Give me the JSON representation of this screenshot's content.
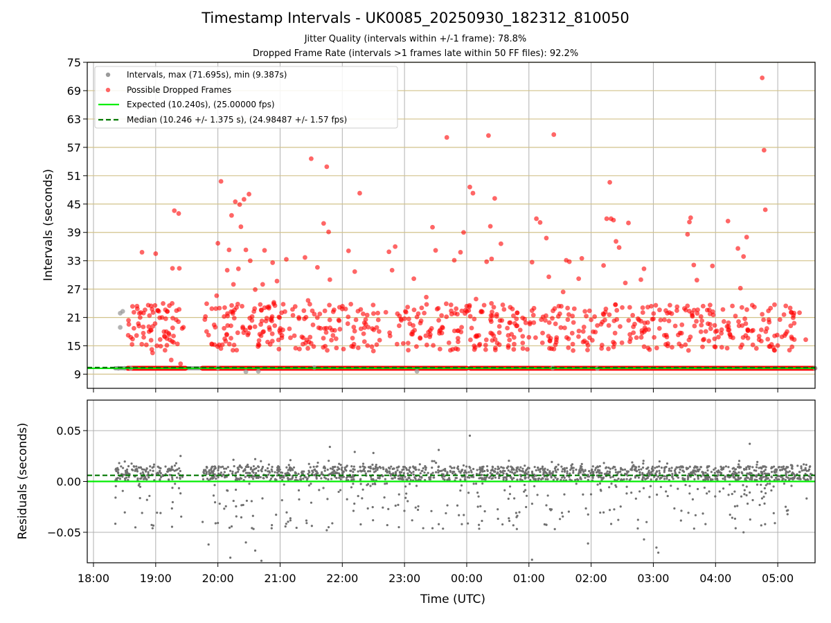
{
  "colors": {
    "intervals": "#9a9a9a",
    "dropped": "#ff0000",
    "expected": "#00ee00",
    "median": "#007700",
    "residuals": "#707070",
    "hgrid_top": "#d2c28a",
    "grid": "#b0b0b0"
  },
  "chart_data": [
    {
      "type": "scatter",
      "title": "Timestamp Intervals - UK0085_20250930_182312_810050",
      "subtitle_1": "Jitter Quality (intervals within +/-1 frame): 78.8%",
      "subtitle_2": "Dropped Frame Rate (intervals >1 frames late within 50 FF files): 92.2%",
      "ylabel": "Intervals (seconds)",
      "xlabel": "",
      "x_unit": "hours since 18:00 UTC",
      "xlim": [
        -0.1,
        11.6
      ],
      "ylim": [
        6,
        75
      ],
      "yticks": [
        9,
        15,
        21,
        27,
        33,
        39,
        45,
        51,
        57,
        63,
        69,
        75
      ],
      "expected_interval": 10.24,
      "median_interval": 10.246,
      "legend": [
        "Intervals, max (71.695s), min (9.387s)",
        "Possible Dropped Frames",
        "Expected (10.240s), (25.00000 fps)",
        "Median (10.246 +/- 1.375 s), (24.98487 +/- 1.57 fps)"
      ],
      "intervals_series": [
        [
          0.43,
          21.9
        ],
        [
          0.47,
          22.3
        ],
        [
          0.43,
          18.9
        ],
        [
          0.4,
          10.24
        ],
        [
          0.5,
          10.25
        ],
        [
          0.6,
          10.24
        ],
        [
          2.0,
          10.3
        ],
        [
          2.45,
          9.5
        ],
        [
          2.65,
          9.6
        ],
        [
          3.55,
          10.4
        ],
        [
          5.2,
          9.6
        ],
        [
          7.38,
          10.3
        ],
        [
          8.1,
          10.2
        ],
        [
          11.6,
          10.24
        ]
      ],
      "dropped_series": [
        [
          0.6,
          16.8
        ],
        [
          0.65,
          22.1
        ],
        [
          0.62,
          15.3
        ],
        [
          0.7,
          23.4
        ],
        [
          0.75,
          21.0
        ],
        [
          0.78,
          34.8
        ],
        [
          0.8,
          19.0
        ],
        [
          0.85,
          15.2
        ],
        [
          0.88,
          23.6
        ],
        [
          0.9,
          21.4
        ],
        [
          0.95,
          13.5
        ],
        [
          0.99,
          19.7
        ],
        [
          1.0,
          34.5
        ],
        [
          1.02,
          15.0
        ],
        [
          1.05,
          22.3
        ],
        [
          1.22,
          23.5
        ],
        [
          1.25,
          12.0
        ],
        [
          1.27,
          31.4
        ],
        [
          1.3,
          43.6
        ],
        [
          1.33,
          20.5
        ],
        [
          1.35,
          15.4
        ],
        [
          1.37,
          43.0
        ],
        [
          1.38,
          31.4
        ],
        [
          1.4,
          11.2
        ],
        [
          1.8,
          21.2
        ],
        [
          1.9,
          15.4
        ],
        [
          1.98,
          25.6
        ],
        [
          2.0,
          36.7
        ],
        [
          2.02,
          15.2
        ],
        [
          2.05,
          49.8
        ],
        [
          2.1,
          21.2
        ],
        [
          2.15,
          31.0
        ],
        [
          2.18,
          35.3
        ],
        [
          2.22,
          42.6
        ],
        [
          2.25,
          28.0
        ],
        [
          2.28,
          45.5
        ],
        [
          2.3,
          23.1
        ],
        [
          2.33,
          31.3
        ],
        [
          2.35,
          44.9
        ],
        [
          2.37,
          40.2
        ],
        [
          2.4,
          19.0
        ],
        [
          2.42,
          46.0
        ],
        [
          2.45,
          35.3
        ],
        [
          2.48,
          17.3
        ],
        [
          2.5,
          47.1
        ],
        [
          2.52,
          33.0
        ],
        [
          2.55,
          21.2
        ],
        [
          2.6,
          26.9
        ],
        [
          2.65,
          15.3
        ],
        [
          2.7,
          22.5
        ],
        [
          2.72,
          28.0
        ],
        [
          2.75,
          35.2
        ],
        [
          2.8,
          15.8
        ],
        [
          2.85,
          20.5
        ],
        [
          2.88,
          32.6
        ],
        [
          2.9,
          24.2
        ],
        [
          2.95,
          28.7
        ],
        [
          3.0,
          17.8
        ],
        [
          3.05,
          23.8
        ],
        [
          3.1,
          33.3
        ],
        [
          3.15,
          18.6
        ],
        [
          3.2,
          22.7
        ],
        [
          3.25,
          14.5
        ],
        [
          3.35,
          16.9
        ],
        [
          3.4,
          33.7
        ],
        [
          3.45,
          24.6
        ],
        [
          3.5,
          54.6
        ],
        [
          3.55,
          21.7
        ],
        [
          3.6,
          31.6
        ],
        [
          3.65,
          18.7
        ],
        [
          3.7,
          40.9
        ],
        [
          3.72,
          22.4
        ],
        [
          3.75,
          52.9
        ],
        [
          3.78,
          39.1
        ],
        [
          3.8,
          29.0
        ],
        [
          3.85,
          17.2
        ],
        [
          3.9,
          16.5
        ],
        [
          3.95,
          20.3
        ],
        [
          4.0,
          22.8
        ],
        [
          4.1,
          35.1
        ],
        [
          4.15,
          14.9
        ],
        [
          4.2,
          30.7
        ],
        [
          4.22,
          20.5
        ],
        [
          4.28,
          47.3
        ],
        [
          4.3,
          18.6
        ],
        [
          4.4,
          21.5
        ],
        [
          4.5,
          13.9
        ],
        [
          4.6,
          16.2
        ],
        [
          4.7,
          22.1
        ],
        [
          4.75,
          34.9
        ],
        [
          4.8,
          31.0
        ],
        [
          4.85,
          36.0
        ],
        [
          4.92,
          21.3
        ],
        [
          4.98,
          15.5
        ],
        [
          5.05,
          23.2
        ],
        [
          5.15,
          29.2
        ],
        [
          5.2,
          21.1
        ],
        [
          5.25,
          16.7
        ],
        [
          5.35,
          25.3
        ],
        [
          5.45,
          40.1
        ],
        [
          5.5,
          35.2
        ],
        [
          5.55,
          20.4
        ],
        [
          5.6,
          17.7
        ],
        [
          5.68,
          59.1
        ],
        [
          5.75,
          22.4
        ],
        [
          5.8,
          33.1
        ],
        [
          5.85,
          21.7
        ],
        [
          5.9,
          34.8
        ],
        [
          5.95,
          39.0
        ],
        [
          6.0,
          23.4
        ],
        [
          6.05,
          48.6
        ],
        [
          6.1,
          47.3
        ],
        [
          6.15,
          24.9
        ],
        [
          6.2,
          15.1
        ],
        [
          6.25,
          22.2
        ],
        [
          6.28,
          23.6
        ],
        [
          6.32,
          32.8
        ],
        [
          6.35,
          59.5
        ],
        [
          6.38,
          40.3
        ],
        [
          6.4,
          33.4
        ],
        [
          6.45,
          46.2
        ],
        [
          6.55,
          36.6
        ],
        [
          6.6,
          22.7
        ],
        [
          6.7,
          19.9
        ],
        [
          6.8,
          20.7
        ],
        [
          6.9,
          15.6
        ],
        [
          7.0,
          16.8
        ],
        [
          7.05,
          32.7
        ],
        [
          7.12,
          41.9
        ],
        [
          7.18,
          41.1
        ],
        [
          7.22,
          17.7
        ],
        [
          7.28,
          37.8
        ],
        [
          7.32,
          29.6
        ],
        [
          7.4,
          59.7
        ],
        [
          7.48,
          23.4
        ],
        [
          7.55,
          26.4
        ],
        [
          7.6,
          33.1
        ],
        [
          7.65,
          32.8
        ],
        [
          7.7,
          21.3
        ],
        [
          7.8,
          29.2
        ],
        [
          7.85,
          33.5
        ],
        [
          7.9,
          22.3
        ],
        [
          8.0,
          20.5
        ],
        [
          8.1,
          19.3
        ],
        [
          8.2,
          32.0
        ],
        [
          8.25,
          41.9
        ],
        [
          8.3,
          49.6
        ],
        [
          8.32,
          41.9
        ],
        [
          8.36,
          41.6
        ],
        [
          8.4,
          37.1
        ],
        [
          8.45,
          35.8
        ],
        [
          8.5,
          23.1
        ],
        [
          8.55,
          28.3
        ],
        [
          8.6,
          41.0
        ],
        [
          8.7,
          19.6
        ],
        [
          8.8,
          29.0
        ],
        [
          8.85,
          31.3
        ],
        [
          9.0,
          20.7
        ],
        [
          9.1,
          22.6
        ],
        [
          9.2,
          15.3
        ],
        [
          9.3,
          14.7
        ],
        [
          9.4,
          17.3
        ],
        [
          9.5,
          22.9
        ],
        [
          9.55,
          38.6
        ],
        [
          9.58,
          41.2
        ],
        [
          9.6,
          42.1
        ],
        [
          9.65,
          32.1
        ],
        [
          9.7,
          28.9
        ],
        [
          9.8,
          23.4
        ],
        [
          9.9,
          22.6
        ],
        [
          9.95,
          31.9
        ],
        [
          10.0,
          18.0
        ],
        [
          10.1,
          14.7
        ],
        [
          10.2,
          41.4
        ],
        [
          10.28,
          16.7
        ],
        [
          10.32,
          21.3
        ],
        [
          10.36,
          35.6
        ],
        [
          10.4,
          27.2
        ],
        [
          10.45,
          33.9
        ],
        [
          10.5,
          38.0
        ],
        [
          10.52,
          18.3
        ],
        [
          10.6,
          15.2
        ],
        [
          10.7,
          16.3
        ],
        [
          10.75,
          71.7
        ],
        [
          10.78,
          56.4
        ],
        [
          10.8,
          43.8
        ],
        [
          10.85,
          22.4
        ],
        [
          10.9,
          15.3
        ],
        [
          10.95,
          17.1
        ],
        [
          11.1,
          21.6
        ],
        [
          11.15,
          18.0
        ],
        [
          11.2,
          23.0
        ],
        [
          11.35,
          22.0
        ],
        [
          11.45,
          16.3
        ]
      ]
    },
    {
      "type": "scatter",
      "title": "",
      "ylabel": "Residuals (seconds)",
      "xlabel": "Time (UTC)",
      "xlim": [
        -0.1,
        11.6
      ],
      "ylim": [
        -0.08,
        0.08
      ],
      "yticks": [
        0.05,
        0.0,
        -0.05
      ],
      "ytick_labels": [
        "0.05",
        "0.00",
        "−0.05"
      ],
      "xticks": [
        0,
        1,
        2,
        3,
        4,
        5,
        6,
        7,
        8,
        9,
        10,
        11
      ],
      "xtick_labels": [
        "18:00",
        "19:00",
        "20:00",
        "21:00",
        "22:00",
        "23:00",
        "00:00",
        "01:00",
        "02:00",
        "03:00",
        "04:00",
        "05:00"
      ],
      "zero_line": 0.0,
      "median_line": 0.006,
      "residual_points": [
        [
          2.2,
          -0.075
        ],
        [
          2.7,
          -0.078
        ],
        [
          2.6,
          -0.068
        ],
        [
          1.85,
          -0.062
        ],
        [
          2.45,
          -0.06
        ],
        [
          7.05,
          -0.077
        ],
        [
          7.95,
          -0.061
        ],
        [
          9.05,
          -0.065
        ],
        [
          9.08,
          -0.07
        ],
        [
          8.85,
          -0.057
        ],
        [
          10.45,
          -0.05
        ],
        [
          3.75,
          -0.048
        ],
        [
          0.95,
          -0.046
        ],
        [
          5.45,
          -0.046
        ],
        [
          3.78,
          -0.045
        ],
        [
          6.05,
          0.045
        ],
        [
          10.55,
          0.037
        ],
        [
          3.8,
          0.034
        ],
        [
          5.55,
          0.031
        ],
        [
          4.2,
          0.029
        ],
        [
          4.5,
          0.028
        ],
        [
          1.4,
          0.025
        ],
        [
          2.6,
          0.022
        ]
      ]
    }
  ]
}
